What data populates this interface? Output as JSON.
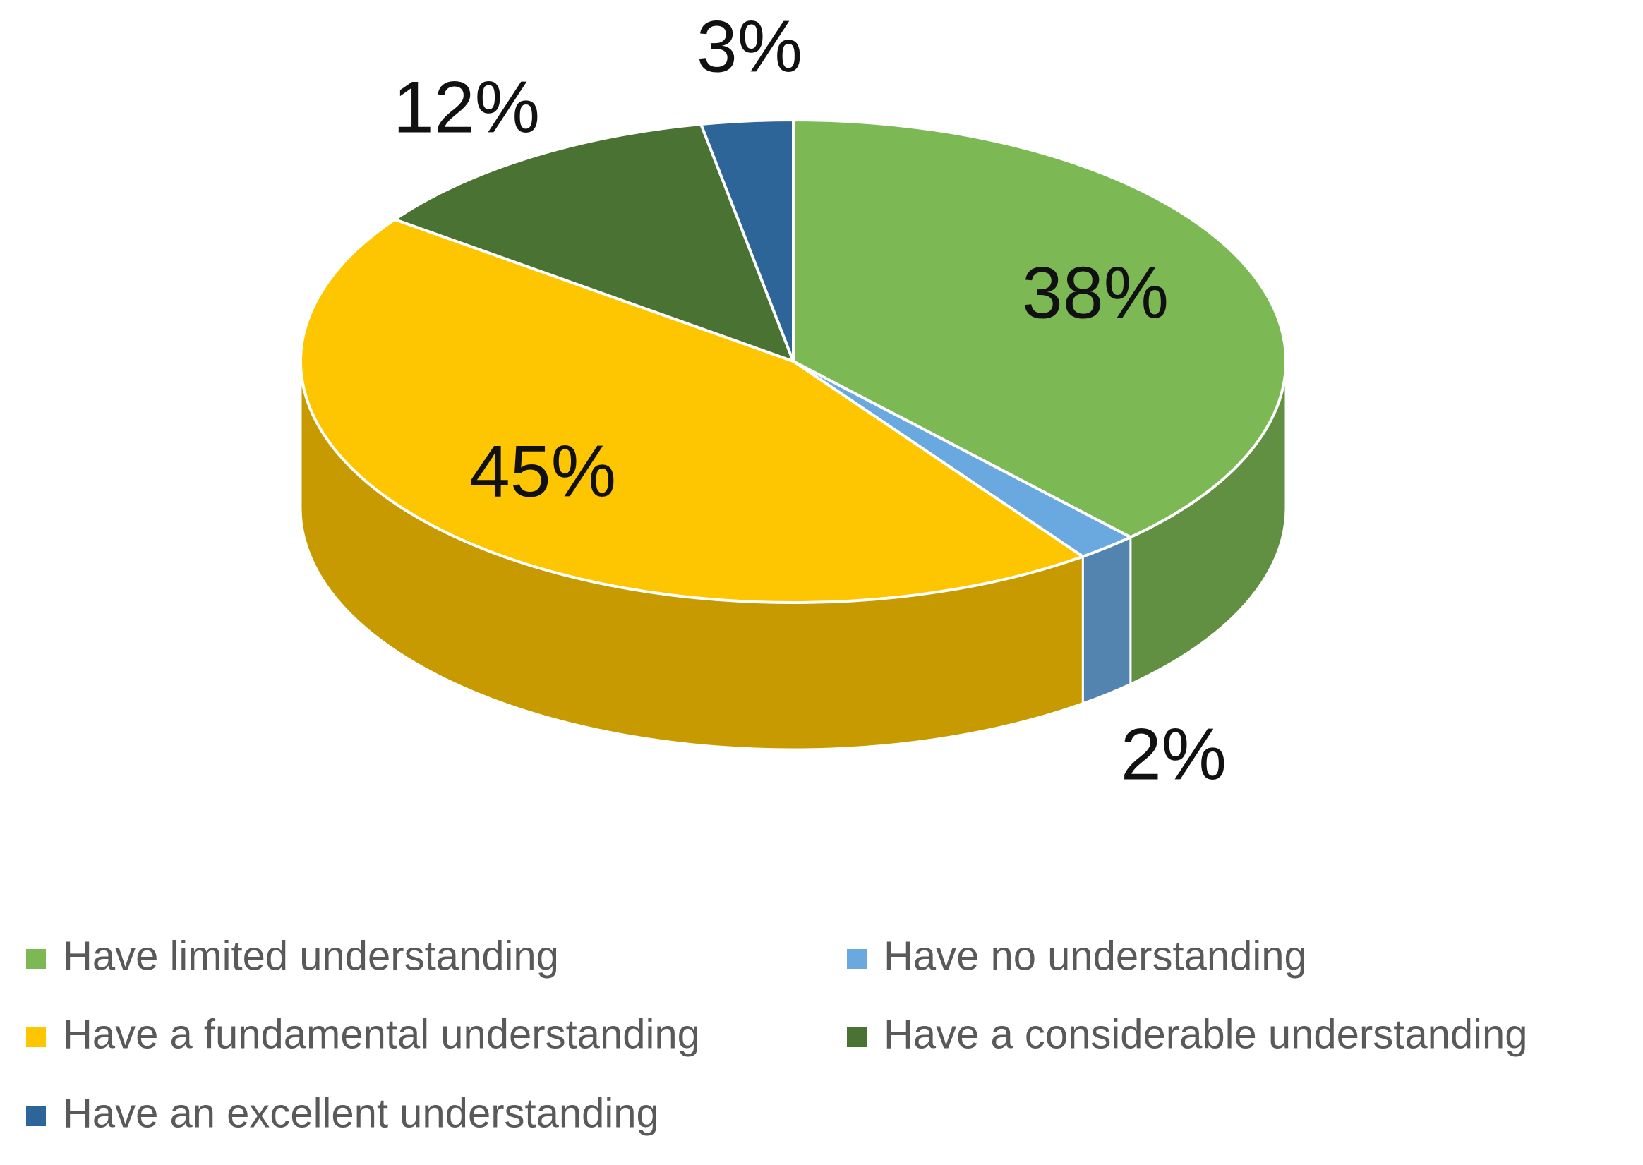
{
  "chart_data": {
    "type": "pie",
    "categories": [
      "Have limited understanding",
      "Have no understanding",
      "Have a fundamental understanding",
      "Have a considerable understanding",
      "Have an excellent understanding"
    ],
    "values": [
      38,
      2,
      45,
      12,
      3
    ],
    "value_labels": [
      "38%",
      "2%",
      "45%",
      "12%",
      "3%"
    ],
    "colors": [
      "#7cb954",
      "#6aa8e0",
      "#fec600",
      "#4a7232",
      "#2d6599"
    ],
    "legend": "bottom"
  }
}
